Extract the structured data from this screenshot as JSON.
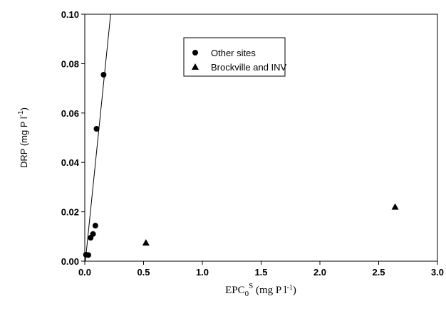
{
  "chart_data": {
    "type": "scatter",
    "ylabel_parts": [
      "DRP (mg P l",
      "-1",
      ")"
    ],
    "xlabel_parts": [
      "EPC",
      "0",
      "S",
      " (mg P l",
      "-1",
      ")"
    ],
    "xlim": [
      0,
      3
    ],
    "ylim": [
      0,
      0.1
    ],
    "xticks": [
      {
        "value": 0,
        "label": "0.0"
      },
      {
        "value": 0.5,
        "label": "0.5"
      },
      {
        "value": 1,
        "label": "1.0"
      },
      {
        "value": 1.5,
        "label": "1.5"
      },
      {
        "value": 2,
        "label": "2.0"
      },
      {
        "value": 2.5,
        "label": "2.5"
      },
      {
        "value": 3,
        "label": "3.0"
      }
    ],
    "yticks": [
      {
        "value": 0,
        "label": "0.00"
      },
      {
        "value": 0.02,
        "label": "0.02"
      },
      {
        "value": 0.04,
        "label": "0.04"
      },
      {
        "value": 0.06,
        "label": "0.06"
      },
      {
        "value": 0.08,
        "label": "0.08"
      },
      {
        "value": 0.1,
        "label": "0.10"
      }
    ],
    "series": [
      {
        "name": "Other sites",
        "marker": "circle",
        "color": "#000000",
        "x": [
          0.01,
          0.03,
          0.05,
          0.07,
          0.09,
          0.1,
          0.16
        ],
        "values": [
          0.0026,
          0.0025,
          0.0095,
          0.011,
          0.0144,
          0.0536,
          0.0755
        ]
      },
      {
        "name": "Brockville and INV",
        "marker": "triangle",
        "color": "#000000",
        "x": [
          0.52,
          2.64
        ],
        "values": [
          0.0075,
          0.022
        ]
      }
    ],
    "fit_line": {
      "x": [
        0.005,
        0.22
      ],
      "values": [
        0,
        0.1
      ]
    }
  }
}
